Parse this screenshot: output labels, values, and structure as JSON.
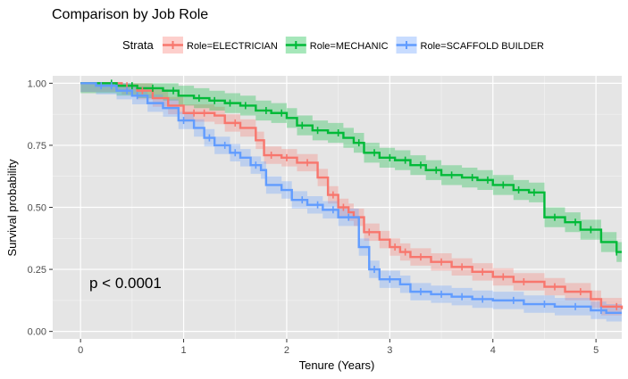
{
  "chart_data": {
    "type": "line",
    "title": "Comparison by Job Role",
    "xlabel": "Tenure (Years)",
    "ylabel": "Survival probability",
    "xlim": [
      -0.27,
      5.25
    ],
    "ylim": [
      -0.03,
      1.03
    ],
    "x_ticks": [
      0,
      1,
      2,
      3,
      4,
      5
    ],
    "y_ticks": [
      0.0,
      0.25,
      0.5,
      0.75,
      1.0
    ],
    "y_tick_labels": [
      "0.00",
      "0.25",
      "0.50",
      "0.75",
      "1.00"
    ],
    "x_tick_labels": [
      "0",
      "1",
      "2",
      "3",
      "4",
      "5"
    ],
    "legend": {
      "title": "Strata",
      "position": "top"
    },
    "annotation": {
      "text": "p < 0.0001",
      "x": 0.1,
      "y": 0.18
    },
    "grid": true,
    "background": "#e5e5e5",
    "series": [
      {
        "name": "Role=ELECTRICIAN",
        "color": "#f8766d",
        "ci_width": 0.035,
        "steps": [
          [
            0,
            1.0
          ],
          [
            0.3,
            1.0
          ],
          [
            0.4,
            0.99
          ],
          [
            0.55,
            0.97
          ],
          [
            0.7,
            0.94
          ],
          [
            0.85,
            0.91
          ],
          [
            1.0,
            0.88
          ],
          [
            1.3,
            0.87
          ],
          [
            1.4,
            0.84
          ],
          [
            1.55,
            0.82
          ],
          [
            1.7,
            0.77
          ],
          [
            1.78,
            0.71
          ],
          [
            1.95,
            0.7
          ],
          [
            2.1,
            0.68
          ],
          [
            2.3,
            0.62
          ],
          [
            2.4,
            0.55
          ],
          [
            2.5,
            0.5
          ],
          [
            2.6,
            0.48
          ],
          [
            2.65,
            0.46
          ],
          [
            2.75,
            0.4
          ],
          [
            2.9,
            0.37
          ],
          [
            3.0,
            0.34
          ],
          [
            3.1,
            0.32
          ],
          [
            3.2,
            0.3
          ],
          [
            3.4,
            0.28
          ],
          [
            3.6,
            0.26
          ],
          [
            3.8,
            0.24
          ],
          [
            4.0,
            0.22
          ],
          [
            4.2,
            0.2
          ],
          [
            4.5,
            0.18
          ],
          [
            4.7,
            0.16
          ],
          [
            4.95,
            0.13
          ],
          [
            5.05,
            0.1
          ],
          [
            5.25,
            0.09
          ]
        ],
        "censor_x": [
          0.45,
          0.6,
          1.1,
          1.2,
          1.5,
          1.85,
          2.0,
          2.2,
          2.45,
          2.55,
          2.8,
          3.05,
          3.15,
          3.3,
          3.5,
          3.7,
          3.9,
          4.1,
          4.3,
          4.6,
          4.85,
          5.2
        ]
      },
      {
        "name": "Role=MECHANIC",
        "color": "#00ba38",
        "ci_width": 0.04,
        "steps": [
          [
            0,
            1.0
          ],
          [
            0.25,
            1.0
          ],
          [
            0.35,
            0.99
          ],
          [
            0.55,
            0.98
          ],
          [
            0.8,
            0.97
          ],
          [
            0.95,
            0.95
          ],
          [
            1.1,
            0.94
          ],
          [
            1.25,
            0.93
          ],
          [
            1.4,
            0.92
          ],
          [
            1.55,
            0.91
          ],
          [
            1.7,
            0.89
          ],
          [
            1.85,
            0.88
          ],
          [
            2.0,
            0.86
          ],
          [
            2.1,
            0.83
          ],
          [
            2.25,
            0.81
          ],
          [
            2.4,
            0.8
          ],
          [
            2.55,
            0.78
          ],
          [
            2.65,
            0.76
          ],
          [
            2.75,
            0.72
          ],
          [
            2.9,
            0.7
          ],
          [
            3.05,
            0.69
          ],
          [
            3.2,
            0.67
          ],
          [
            3.35,
            0.65
          ],
          [
            3.5,
            0.63
          ],
          [
            3.7,
            0.62
          ],
          [
            3.85,
            0.61
          ],
          [
            4.0,
            0.59
          ],
          [
            4.2,
            0.57
          ],
          [
            4.35,
            0.56
          ],
          [
            4.5,
            0.54
          ],
          [
            4.5,
            0.46
          ],
          [
            4.7,
            0.44
          ],
          [
            4.85,
            0.41
          ],
          [
            5.05,
            0.36
          ],
          [
            5.2,
            0.32
          ]
        ],
        "censor_x": [
          0.3,
          0.5,
          0.7,
          0.9,
          1.15,
          1.3,
          1.45,
          1.6,
          1.8,
          1.95,
          2.15,
          2.3,
          2.5,
          2.7,
          2.85,
          3.0,
          3.15,
          3.3,
          3.45,
          3.6,
          3.8,
          3.95,
          4.1,
          4.25,
          4.4,
          4.6,
          4.8,
          4.95,
          5.2
        ]
      },
      {
        "name": "Role=SCAFFOLD BUILDER",
        "color": "#619cff",
        "ci_width": 0.035,
        "steps": [
          [
            0,
            1.0
          ],
          [
            0.15,
            0.99
          ],
          [
            0.35,
            0.97
          ],
          [
            0.5,
            0.95
          ],
          [
            0.65,
            0.92
          ],
          [
            0.8,
            0.9
          ],
          [
            0.95,
            0.85
          ],
          [
            1.1,
            0.82
          ],
          [
            1.2,
            0.78
          ],
          [
            1.3,
            0.75
          ],
          [
            1.45,
            0.72
          ],
          [
            1.55,
            0.7
          ],
          [
            1.65,
            0.67
          ],
          [
            1.75,
            0.65
          ],
          [
            1.8,
            0.59
          ],
          [
            1.95,
            0.57
          ],
          [
            2.05,
            0.53
          ],
          [
            2.2,
            0.51
          ],
          [
            2.35,
            0.49
          ],
          [
            2.5,
            0.46
          ],
          [
            2.7,
            0.45
          ],
          [
            2.7,
            0.34
          ],
          [
            2.8,
            0.25
          ],
          [
            2.9,
            0.21
          ],
          [
            3.1,
            0.19
          ],
          [
            3.2,
            0.16
          ],
          [
            3.4,
            0.15
          ],
          [
            3.6,
            0.14
          ],
          [
            3.8,
            0.13
          ],
          [
            4.0,
            0.125
          ],
          [
            4.3,
            0.11
          ],
          [
            4.6,
            0.1
          ],
          [
            4.95,
            0.085
          ],
          [
            5.1,
            0.075
          ],
          [
            5.25,
            0.075
          ]
        ],
        "censor_x": [
          0.2,
          0.3,
          0.45,
          0.55,
          1.0,
          1.25,
          1.4,
          1.5,
          1.7,
          2.15,
          2.3,
          2.45,
          2.6,
          2.85,
          3.0,
          3.3,
          3.5,
          3.7,
          3.9,
          4.2,
          4.5,
          4.8,
          5.05
        ]
      }
    ]
  }
}
